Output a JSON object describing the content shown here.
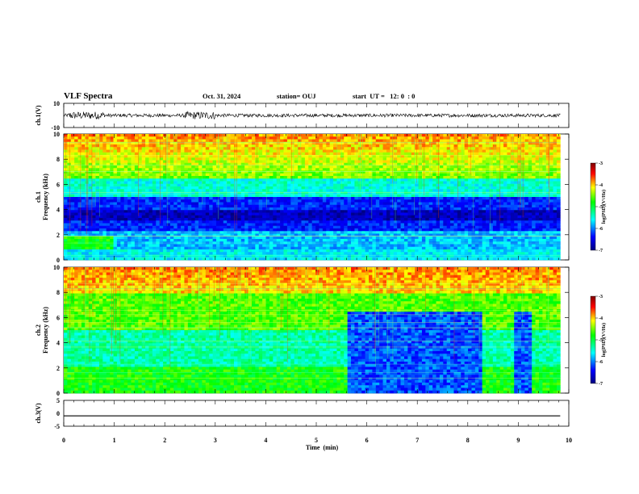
{
  "header": {
    "title": "VLF Spectra",
    "date": "Oct. 31, 2024",
    "station": "station= OUJ",
    "start": "start  UT =   12: 0  : 0"
  },
  "chart_data": [
    {
      "type": "line",
      "name": "ch1-waveform",
      "ylabel": "ch.1(V)",
      "ylim": [
        -10,
        10
      ],
      "yticks": [
        "10",
        "-10"
      ],
      "xlim": [
        0,
        10
      ],
      "description_values": {
        "baseline": 0,
        "typical_amplitude": 1.5,
        "burst_windows_min": [
          [
            0.1,
            0.8
          ],
          [
            2.4,
            3.0
          ]
        ]
      }
    },
    {
      "type": "heatmap",
      "name": "ch1-spectrogram",
      "ylabel": "ch.1\nFrequency  (kHz)",
      "ylim": [
        0,
        10
      ],
      "yticks": [
        "0",
        "2",
        "4",
        "6",
        "8",
        "10"
      ],
      "xlim": [
        0,
        9.83
      ],
      "colorbar": {
        "label": "log(PSD)(V²/Hz)",
        "range": [
          -7,
          -3
        ],
        "ticks": [
          "-3",
          "-4",
          "-5",
          "-6",
          "-7"
        ]
      }
    },
    {
      "type": "heatmap",
      "name": "ch2-spectrogram",
      "ylabel": "ch.2\nFrequency  (kHz)",
      "ylim": [
        0,
        10
      ],
      "yticks": [
        "0",
        "2",
        "4",
        "6",
        "8",
        "10"
      ],
      "xlim": [
        0,
        9.83
      ],
      "colorbar": {
        "label": "log(PSD)(V²/Hz)",
        "range": [
          -7,
          -3
        ],
        "ticks": [
          "-3",
          "-4",
          "-5",
          "-6",
          "-7"
        ]
      }
    },
    {
      "type": "line",
      "name": "ch3-waveform",
      "ylabel": "ch.3(V)",
      "ylim": [
        -5,
        5
      ],
      "yticks": [
        "5",
        "0",
        "-5"
      ],
      "xlim": [
        0,
        10
      ],
      "x": [
        0,
        9.83
      ],
      "y": [
        -1,
        -1
      ]
    }
  ],
  "xaxis": {
    "label": "Time  (min)",
    "ticks": [
      "0",
      "1",
      "2",
      "3",
      "4",
      "5",
      "6",
      "7",
      "8",
      "9",
      "10"
    ]
  },
  "colorscale": [
    "#000080",
    "#0000ff",
    "#00ffff",
    "#00ff00",
    "#ffff00",
    "#ff0000",
    "#800000"
  ]
}
